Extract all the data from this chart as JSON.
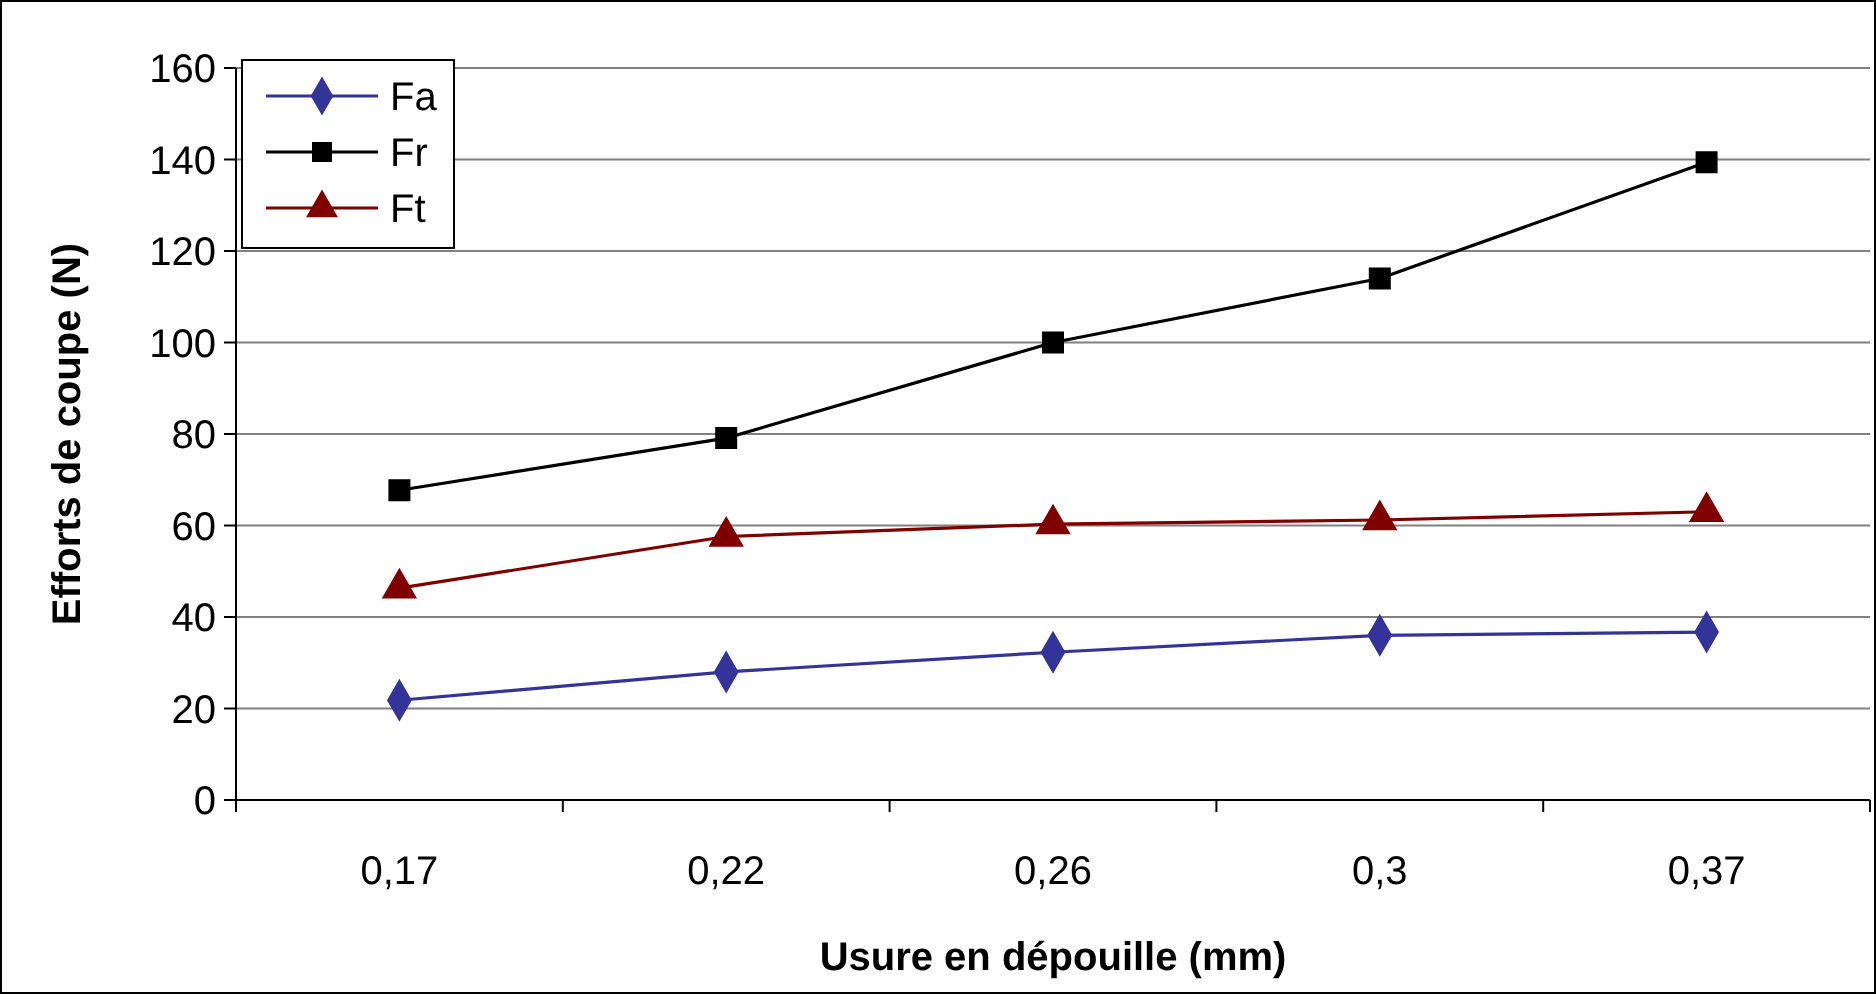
{
  "chart_data": {
    "type": "line",
    "xlabel": "Usure en dépouille (mm)",
    "ylabel": "Efforts de coupe (N)",
    "categories": [
      "0,17",
      "0,22",
      "0,26",
      "0,3",
      "0,37"
    ],
    "series": [
      {
        "name": "Fa",
        "color": "#333399",
        "marker": "diamond",
        "values": [
          21.8,
          28,
          32.3,
          36,
          36.7
        ]
      },
      {
        "name": "Fr",
        "color": "#000000",
        "marker": "square",
        "values": [
          67.7,
          79.1,
          100,
          114,
          139.4
        ]
      },
      {
        "name": "Ft",
        "color": "#800000",
        "marker": "triangle",
        "values": [
          46.3,
          57.6,
          60.3,
          61.2,
          63
        ]
      }
    ],
    "ylim": [
      0,
      160
    ],
    "yticks": [
      0,
      20,
      40,
      60,
      80,
      100,
      120,
      140,
      160
    ],
    "grid": "y",
    "legend": "top left",
    "line_style": "solid"
  }
}
